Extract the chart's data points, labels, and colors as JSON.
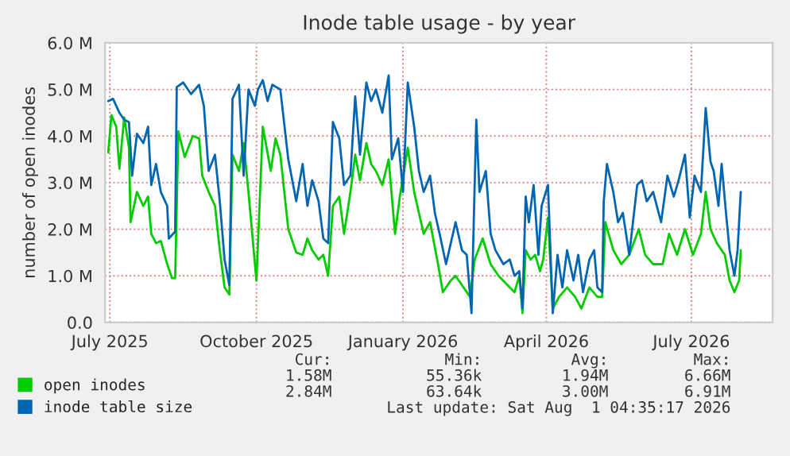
{
  "chart_data": {
    "type": "line",
    "title": "Inode table usage - by year",
    "ylabel": "number of open inodes",
    "xlim": [
      "2025-06-28",
      "2026-08-21"
    ],
    "xticks": [
      {
        "value": "2025-07-01",
        "label": "July 2025"
      },
      {
        "value": "2025-10-01",
        "label": "October 2025"
      },
      {
        "value": "2026-01-01",
        "label": "January 2026"
      },
      {
        "value": "2026-04-01",
        "label": "April 2026"
      },
      {
        "value": "2026-07-01",
        "label": "July 2026"
      }
    ],
    "ylim": [
      0,
      6
    ],
    "yticks": [
      {
        "value": 0,
        "label": "0.0"
      },
      {
        "value": 1,
        "label": "1.0 M"
      },
      {
        "value": 2,
        "label": "2.0 M"
      },
      {
        "value": 3,
        "label": "3.0 M"
      },
      {
        "value": 4,
        "label": "4.0 M"
      },
      {
        "value": 5,
        "label": "5.0 M"
      },
      {
        "value": 6,
        "label": "6.0 M"
      }
    ],
    "grid": true,
    "legend": "bottom left",
    "series": [
      {
        "name": "open inodes",
        "color": "#00cc00",
        "x": [
          "2025-06-30",
          "2025-07-02",
          "2025-07-05",
          "2025-07-07",
          "2025-07-10",
          "2025-07-13",
          "2025-07-14",
          "2025-07-18",
          "2025-07-22",
          "2025-07-25",
          "2025-07-27",
          "2025-07-30",
          "2025-08-02",
          "2025-08-06",
          "2025-08-09",
          "2025-08-11",
          "2025-08-13",
          "2025-08-17",
          "2025-08-22",
          "2025-08-26",
          "2025-08-28",
          "2025-09-01",
          "2025-09-05",
          "2025-09-08",
          "2025-09-11",
          "2025-09-14",
          "2025-09-16",
          "2025-09-20",
          "2025-09-23",
          "2025-09-26",
          "2025-10-01",
          "2025-10-05",
          "2025-10-10",
          "2025-10-13",
          "2025-10-16",
          "2025-10-21",
          "2025-10-26",
          "2025-10-30",
          "2025-11-02",
          "2025-11-05",
          "2025-11-09",
          "2025-11-12",
          "2025-11-15",
          "2025-11-18",
          "2025-11-22",
          "2025-11-25",
          "2025-11-29",
          "2025-12-02",
          "2025-12-05",
          "2025-12-09",
          "2025-12-12",
          "2025-12-15",
          "2025-12-19",
          "2025-12-23",
          "2025-12-27",
          "2025-12-30",
          "2026-01-04",
          "2026-01-08",
          "2026-01-11",
          "2026-01-14",
          "2026-01-18",
          "2026-01-23",
          "2026-01-26",
          "2026-01-31",
          "2026-02-03",
          "2026-02-08",
          "2026-02-12",
          "2026-02-15",
          "2026-02-20",
          "2026-02-25",
          "2026-03-02",
          "2026-03-09",
          "2026-03-12",
          "2026-03-15",
          "2026-03-17",
          "2026-03-19",
          "2026-03-22",
          "2026-03-25",
          "2026-03-28",
          "2026-03-30",
          "2026-04-02",
          "2026-04-05",
          "2026-04-09",
          "2026-04-14",
          "2026-04-19",
          "2026-04-23",
          "2026-04-28",
          "2026-05-03",
          "2026-05-06",
          "2026-05-08",
          "2026-05-13",
          "2026-05-18",
          "2026-05-23",
          "2026-05-29",
          "2026-06-02",
          "2026-06-07",
          "2026-06-13",
          "2026-06-17",
          "2026-06-22",
          "2026-06-27",
          "2026-07-02",
          "2026-07-07",
          "2026-07-10",
          "2026-07-13",
          "2026-07-17",
          "2026-07-22",
          "2026-07-25",
          "2026-07-28",
          "2026-07-31",
          "2026-08-01"
        ],
        "values": [
          3.65,
          4.45,
          4.2,
          3.3,
          4.4,
          3.75,
          2.15,
          2.8,
          2.5,
          2.7,
          1.9,
          1.7,
          1.75,
          1.25,
          0.95,
          0.95,
          4.1,
          3.55,
          4.0,
          3.95,
          3.15,
          2.8,
          2.5,
          1.55,
          0.75,
          0.6,
          3.6,
          3.25,
          3.85,
          2.8,
          0.9,
          4.2,
          3.25,
          3.95,
          3.6,
          2.0,
          1.5,
          1.45,
          1.8,
          1.55,
          1.35,
          1.45,
          1.0,
          2.5,
          2.7,
          1.9,
          2.8,
          3.6,
          3.05,
          3.85,
          3.4,
          3.25,
          2.95,
          3.5,
          1.9,
          2.7,
          3.75,
          2.8,
          2.35,
          1.9,
          2.15,
          1.25,
          0.65,
          0.9,
          1.0,
          0.75,
          0.55,
          1.35,
          1.8,
          1.25,
          1.0,
          0.75,
          0.65,
          1.0,
          0.2,
          1.55,
          1.35,
          1.45,
          1.1,
          1.35,
          2.25,
          0.3,
          0.55,
          0.75,
          0.55,
          0.3,
          0.75,
          0.55,
          0.55,
          2.15,
          1.55,
          1.25,
          1.45,
          2.0,
          1.45,
          1.25,
          1.25,
          1.9,
          1.45,
          2.0,
          1.45,
          1.9,
          2.8,
          2.0,
          1.7,
          1.45,
          0.9,
          0.65,
          0.9,
          1.55
        ]
      },
      {
        "name": "inode table size",
        "color": "#0066b3",
        "x": [
          "2025-06-30",
          "2025-07-03",
          "2025-07-07",
          "2025-07-10",
          "2025-07-13",
          "2025-07-15",
          "2025-07-18",
          "2025-07-22",
          "2025-07-25",
          "2025-07-27",
          "2025-07-30",
          "2025-08-02",
          "2025-08-06",
          "2025-08-07",
          "2025-08-11",
          "2025-08-12",
          "2025-08-16",
          "2025-08-21",
          "2025-08-26",
          "2025-08-29",
          "2025-09-01",
          "2025-09-05",
          "2025-09-08",
          "2025-09-11",
          "2025-09-14",
          "2025-09-16",
          "2025-09-20",
          "2025-09-23",
          "2025-09-26",
          "2025-09-30",
          "2025-10-02",
          "2025-10-05",
          "2025-10-08",
          "2025-10-11",
          "2025-10-16",
          "2025-10-21",
          "2025-10-26",
          "2025-10-30",
          "2025-11-02",
          "2025-11-05",
          "2025-11-09",
          "2025-11-12",
          "2025-11-15",
          "2025-11-18",
          "2025-11-22",
          "2025-11-25",
          "2025-11-29",
          "2025-12-02",
          "2025-12-05",
          "2025-12-09",
          "2025-12-12",
          "2025-12-15",
          "2025-12-19",
          "2025-12-23",
          "2025-12-25",
          "2025-12-29",
          "2026-01-01",
          "2026-01-04",
          "2026-01-08",
          "2026-01-11",
          "2026-01-14",
          "2026-01-18",
          "2026-01-21",
          "2026-01-24",
          "2026-01-28",
          "2026-01-31",
          "2026-02-03",
          "2026-02-07",
          "2026-02-10",
          "2026-02-13",
          "2026-02-16",
          "2026-02-18",
          "2026-02-22",
          "2026-02-25",
          "2026-02-28",
          "2026-03-05",
          "2026-03-09",
          "2026-03-12",
          "2026-03-15",
          "2026-03-17",
          "2026-03-19",
          "2026-03-21",
          "2026-03-24",
          "2026-03-27",
          "2026-03-29",
          "2026-04-02",
          "2026-04-05",
          "2026-04-08",
          "2026-04-11",
          "2026-04-14",
          "2026-04-18",
          "2026-04-21",
          "2026-04-24",
          "2026-04-28",
          "2026-05-01",
          "2026-05-03",
          "2026-05-06",
          "2026-05-07",
          "2026-05-09",
          "2026-05-13",
          "2026-05-16",
          "2026-05-19",
          "2026-05-23",
          "2026-05-28",
          "2026-05-31",
          "2026-06-03",
          "2026-06-07",
          "2026-06-12",
          "2026-06-16",
          "2026-06-20",
          "2026-06-23",
          "2026-06-27",
          "2026-06-30",
          "2026-07-03",
          "2026-07-07",
          "2026-07-10",
          "2026-07-13",
          "2026-07-15",
          "2026-07-18",
          "2026-07-20",
          "2026-07-23",
          "2026-07-25",
          "2026-07-28",
          "2026-07-30",
          "2026-08-01"
        ],
        "values": [
          4.75,
          4.8,
          4.5,
          4.35,
          4.3,
          3.15,
          4.05,
          3.85,
          4.2,
          2.95,
          3.4,
          2.8,
          2.5,
          1.8,
          1.95,
          5.05,
          5.15,
          4.9,
          5.1,
          4.65,
          3.25,
          3.6,
          2.6,
          1.35,
          0.8,
          4.8,
          5.1,
          3.15,
          5.0,
          4.65,
          5.0,
          5.2,
          4.75,
          5.1,
          5.0,
          3.5,
          2.6,
          3.4,
          2.5,
          3.05,
          2.6,
          1.8,
          1.7,
          4.3,
          3.95,
          2.95,
          3.15,
          4.85,
          3.6,
          5.15,
          4.75,
          5.0,
          4.5,
          5.3,
          3.5,
          3.95,
          2.8,
          5.15,
          4.2,
          3.25,
          2.8,
          3.15,
          2.35,
          1.9,
          1.25,
          1.7,
          2.15,
          1.55,
          1.45,
          0.2,
          4.35,
          2.8,
          3.25,
          1.9,
          1.55,
          1.25,
          1.35,
          1.0,
          1.1,
          0.3,
          2.7,
          2.15,
          2.95,
          1.45,
          2.5,
          2.95,
          0.2,
          1.45,
          0.75,
          1.55,
          0.9,
          1.45,
          0.65,
          1.35,
          1.55,
          0.75,
          0.65,
          2.6,
          3.4,
          2.8,
          2.15,
          2.35,
          1.45,
          2.95,
          3.05,
          2.6,
          2.8,
          2.15,
          3.15,
          2.7,
          3.05,
          3.6,
          2.25,
          3.15,
          2.8,
          4.6,
          3.45,
          3.25,
          2.5,
          3.4,
          2.25,
          1.55,
          1.0,
          1.55,
          2.8
        ]
      }
    ],
    "annotations": [
      "Cur:",
      "Min:",
      "Avg:",
      "Max:",
      "1.58M",
      "55.36k",
      "1.94M",
      "6.66M",
      "2.84M",
      "63.64k",
      "3.00M",
      "6.91M",
      "Last update: Sat Aug  1 04:35:17 2026"
    ]
  }
}
